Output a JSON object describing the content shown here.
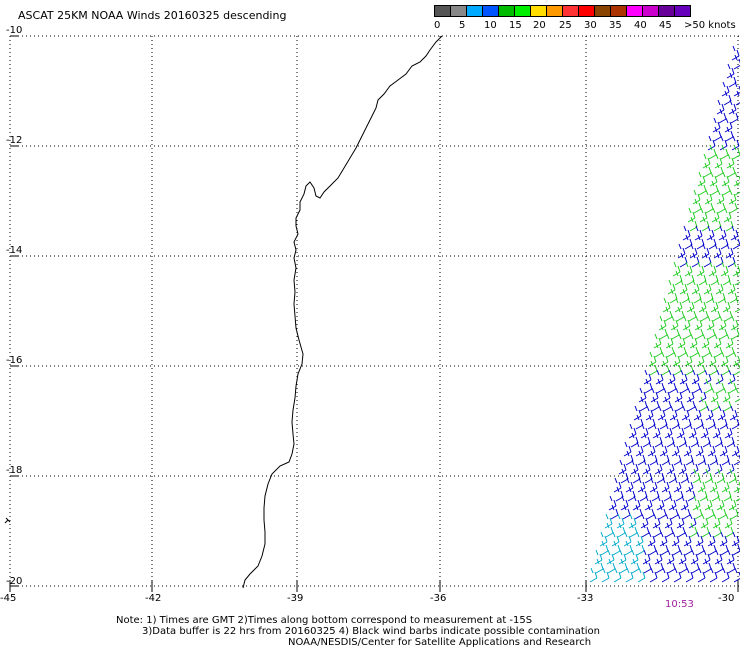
{
  "title": "ASCAT 25KM NOAA Winds 20160325 descending",
  "colorbar": {
    "colors": [
      "#555555",
      "#888888",
      "#00aaff",
      "#0055ff",
      "#00bb00",
      "#00ee00",
      "#ffdd00",
      "#ff9900",
      "#ff3333",
      "#ff0000",
      "#884400",
      "#aa3300",
      "#ff00ff",
      "#cc00cc",
      "#660099",
      "#6600bb"
    ],
    "labels": [
      "0",
      "5",
      "10",
      "15",
      "20",
      "25",
      "30",
      "35",
      "40",
      "45",
      ">50 knots"
    ]
  },
  "lat_labels": [
    "-10",
    "-12",
    "-14",
    "-16",
    "-18",
    "-20"
  ],
  "lon_labels": [
    "-45",
    "-42",
    "-39",
    "-36",
    "-33",
    "-30"
  ],
  "time_label": "10:53",
  "notes": [
    "Note: 1) Times are GMT 2)Times along bottom correspond to measurement at -15S",
    "3)Data buffer is 22 hrs from 20160325 4) Black wind barbs indicate possible contamination",
    "NOAA/NESDIS/Center for Satellite Applications and Research"
  ],
  "wind_colors": {
    "blue": "#0000cc",
    "green": "#22cc22",
    "cyan": "#00aacc"
  }
}
